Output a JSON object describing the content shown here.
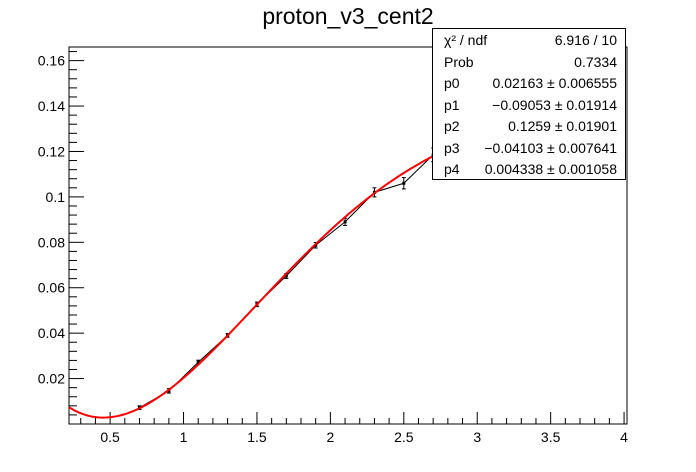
{
  "chart_data": {
    "type": "scatter",
    "title": "proton_v3_cent2",
    "xlabel": "",
    "ylabel": "",
    "xlim": [
      0.22,
      4.02
    ],
    "ylim": [
      0.0,
      0.166
    ],
    "x_ticks": [
      0.5,
      1,
      1.5,
      2,
      2.5,
      3,
      3.5,
      4
    ],
    "x_tick_labels": [
      "0.5",
      "1",
      "1.5",
      "2",
      "2.5",
      "3",
      "3.5",
      "4"
    ],
    "y_ticks": [
      0.02,
      0.04,
      0.06,
      0.08,
      0.1,
      0.12,
      0.14,
      0.16
    ],
    "y_tick_labels": [
      "0.02",
      "0.04",
      "0.06",
      "0.08",
      "0.1",
      "0.12",
      "0.14",
      "0.16"
    ],
    "grid": false,
    "series": [
      {
        "kind": "points-with-errors",
        "color": "#000000",
        "x": [
          0.7,
          0.9,
          1.1,
          1.3,
          1.5,
          1.7,
          1.9,
          2.1,
          2.3,
          2.5,
          2.7
        ],
        "y": [
          0.0072,
          0.0146,
          0.0272,
          0.039,
          0.0527,
          0.0652,
          0.0787,
          0.089,
          0.102,
          0.106,
          0.1185
        ],
        "yerr": [
          0.0008,
          0.001,
          0.0009,
          0.0008,
          0.001,
          0.0011,
          0.0012,
          0.0016,
          0.002,
          0.0025,
          0.003
        ]
      },
      {
        "kind": "fit-curve",
        "color": "#ff0000",
        "model": "pol4",
        "params": [
          0.02163,
          -0.09053,
          0.1259,
          -0.04103,
          0.004338
        ]
      }
    ],
    "stats_box": {
      "rows": [
        {
          "name": "χ² / ndf",
          "value": "6.916 / 10"
        },
        {
          "name": "Prob",
          "value": "0.7334"
        },
        {
          "name": "p0",
          "value": "0.02163 ± 0.006555"
        },
        {
          "name": "p1",
          "value": "−0.09053 ± 0.01914"
        },
        {
          "name": "p2",
          "value": "0.1259 ± 0.01901"
        },
        {
          "name": "p3",
          "value": "−0.04103 ± 0.007641"
        },
        {
          "name": "p4",
          "value": "0.004338 ± 0.001058"
        }
      ]
    }
  }
}
